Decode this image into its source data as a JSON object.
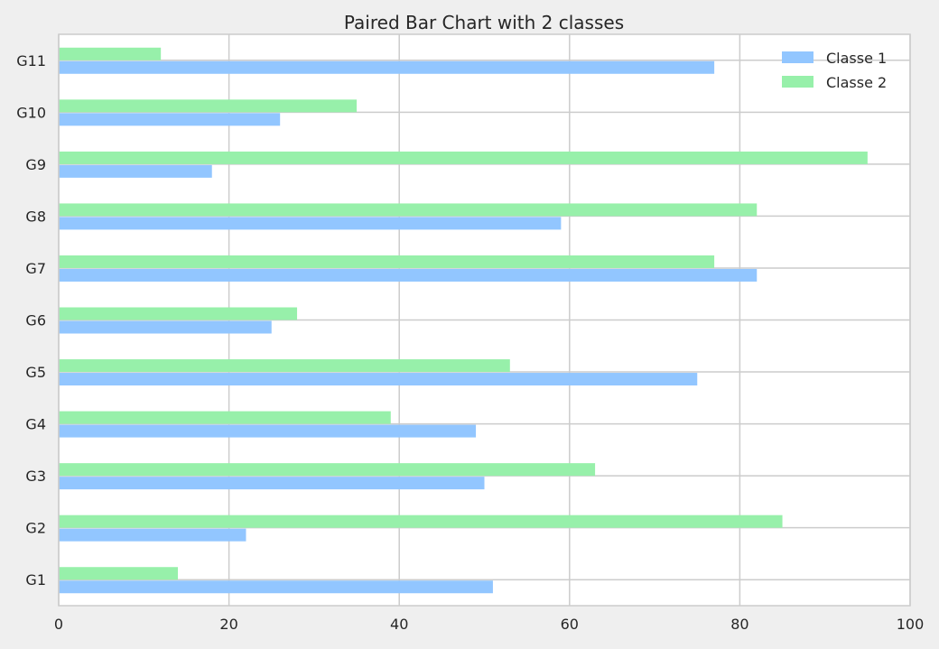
{
  "chart_data": {
    "type": "bar",
    "orientation": "horizontal",
    "title": "Paired Bar Chart with 2 classes",
    "xlabel": "",
    "ylabel": "",
    "categories": [
      "G1",
      "G2",
      "G3",
      "G4",
      "G5",
      "G6",
      "G7",
      "G8",
      "G9",
      "G10",
      "G11"
    ],
    "series": [
      {
        "name": "Classe 1",
        "color": "#92c6ff",
        "values": [
          51,
          22,
          50,
          49,
          75,
          25,
          82,
          59,
          18,
          26,
          77
        ]
      },
      {
        "name": "Classe 2",
        "color": "#97f0aa",
        "values": [
          14,
          85,
          63,
          39,
          53,
          28,
          77,
          82,
          95,
          35,
          12
        ]
      }
    ],
    "xlim": [
      0,
      100
    ],
    "xticks": [
      0,
      20,
      40,
      60,
      80,
      100
    ],
    "grid": true,
    "legend_position": "top-right"
  },
  "colors": {
    "figure_background": "#efefef",
    "plot_background": "#ffffff",
    "grid": "#cccccc",
    "text": "#262626"
  }
}
